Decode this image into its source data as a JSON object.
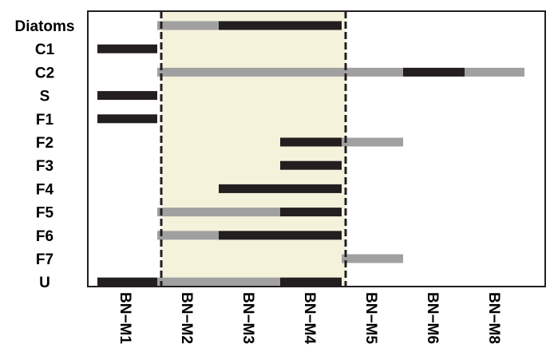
{
  "chart_data": {
    "type": "timeline",
    "rows": [
      "Diatoms",
      "C1",
      "C2",
      "S",
      "F1",
      "F2",
      "F3",
      "F4",
      "F5",
      "F6",
      "F7",
      "U"
    ],
    "columns": [
      "BN−M1",
      "BN−M2",
      "BN−M3",
      "BN−M4",
      "BN−M5",
      "BN−M6",
      "BN−M8"
    ],
    "highlight": {
      "from_column": 1,
      "to_column": 3,
      "color": "#f5f2dc"
    },
    "level_colors": {
      "dark": "#231f20",
      "light": "#a0a0a0"
    },
    "series": [
      {
        "row": "Diatoms",
        "segments": [
          {
            "from": 1,
            "to": 1,
            "level": "light"
          },
          {
            "from": 2,
            "to": 3,
            "level": "dark"
          }
        ]
      },
      {
        "row": "C1",
        "segments": [
          {
            "from": 0,
            "to": 0,
            "level": "dark"
          }
        ]
      },
      {
        "row": "C2",
        "segments": [
          {
            "from": 1,
            "to": 4,
            "level": "light"
          },
          {
            "from": 5,
            "to": 5,
            "level": "dark"
          },
          {
            "from": 6,
            "to": 6,
            "level": "light"
          }
        ]
      },
      {
        "row": "S",
        "segments": [
          {
            "from": 0,
            "to": 0,
            "level": "dark"
          }
        ]
      },
      {
        "row": "F1",
        "segments": [
          {
            "from": 0,
            "to": 0,
            "level": "dark"
          }
        ]
      },
      {
        "row": "F2",
        "segments": [
          {
            "from": 3,
            "to": 3,
            "level": "dark"
          },
          {
            "from": 4,
            "to": 4,
            "level": "light"
          }
        ]
      },
      {
        "row": "F3",
        "segments": [
          {
            "from": 3,
            "to": 3,
            "level": "dark"
          }
        ]
      },
      {
        "row": "F4",
        "segments": [
          {
            "from": 2,
            "to": 3,
            "level": "dark"
          }
        ]
      },
      {
        "row": "F5",
        "segments": [
          {
            "from": 1,
            "to": 2,
            "level": "light"
          },
          {
            "from": 3,
            "to": 3,
            "level": "dark"
          }
        ]
      },
      {
        "row": "F6",
        "segments": [
          {
            "from": 1,
            "to": 1,
            "level": "light"
          },
          {
            "from": 2,
            "to": 3,
            "level": "dark"
          }
        ]
      },
      {
        "row": "F7",
        "segments": [
          {
            "from": 4,
            "to": 4,
            "level": "light"
          }
        ]
      },
      {
        "row": "U",
        "segments": [
          {
            "from": 0,
            "to": 0,
            "level": "dark"
          },
          {
            "from": 1,
            "to": 2,
            "level": "light"
          },
          {
            "from": 3,
            "to": 3,
            "level": "dark"
          }
        ]
      }
    ],
    "title": "",
    "xlabel": "",
    "ylabel": "",
    "grid": false,
    "legend": "none"
  }
}
